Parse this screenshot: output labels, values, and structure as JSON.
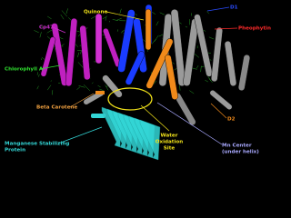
{
  "labels": [
    {
      "lines": [
        "Quinone"
      ]
    },
    {
      "lines": [
        "D1"
      ]
    },
    {
      "lines": [
        "Cp47"
      ]
    },
    {
      "lines": [
        "Pheophytin"
      ]
    },
    {
      "lines": [
        "Chlorophyll A"
      ]
    },
    {
      "lines": [
        "Beta Carotene"
      ]
    },
    {
      "lines": [
        "D2"
      ]
    },
    {
      "lines": [
        "Water",
        "Oxidation",
        "Site"
      ]
    },
    {
      "lines": [
        "Mn Center",
        "(under helix)"
      ]
    },
    {
      "lines": [
        "Manganese Stabilizing",
        "Protein"
      ]
    }
  ]
}
